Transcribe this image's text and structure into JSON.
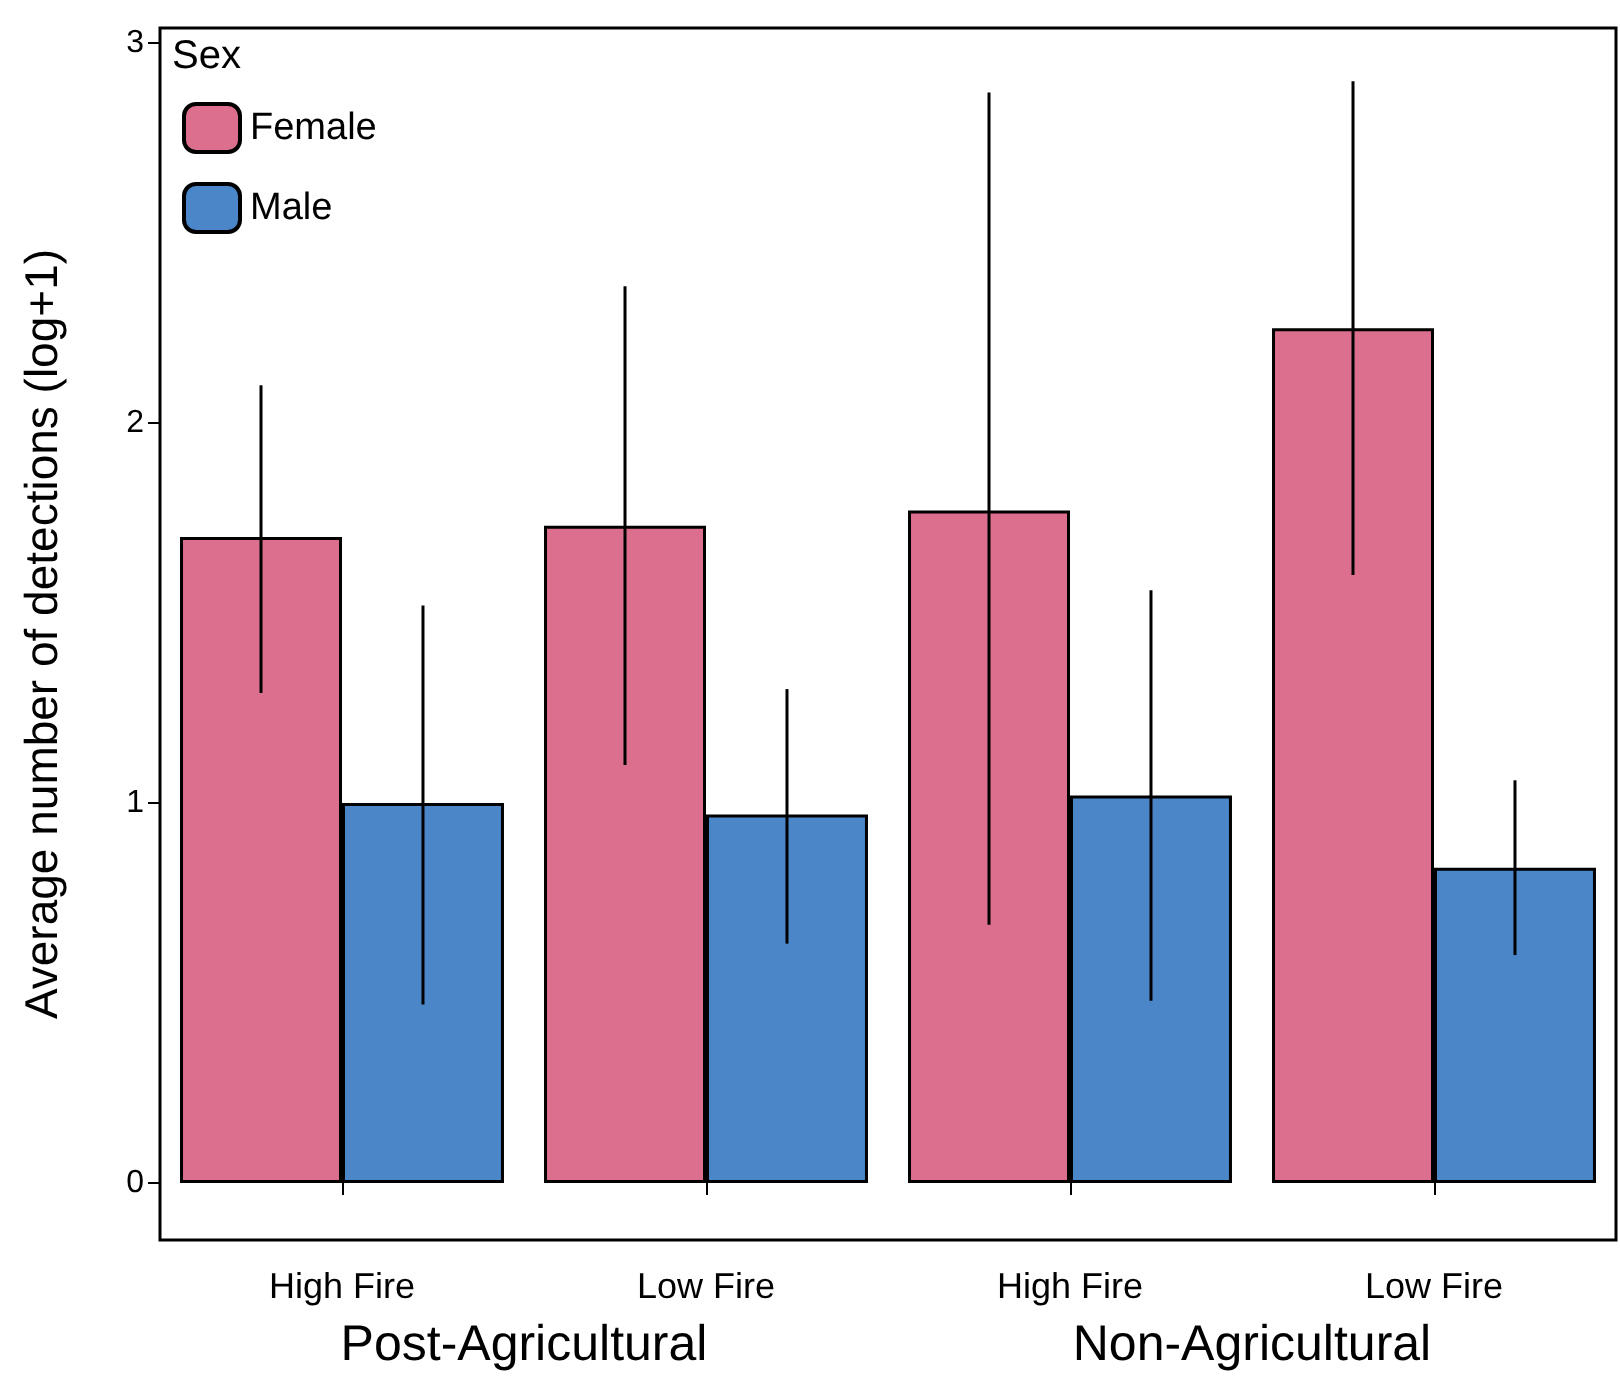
{
  "chart_data": {
    "type": "bar",
    "ylabel": "Average number of detections (log+1)",
    "legend_title": "Sex",
    "categories": [
      "High Fire",
      "Low Fire",
      "High Fire",
      "Low Fire"
    ],
    "series": [
      {
        "name": "Female",
        "color": "#dc6f8e",
        "values": [
          1.7,
          1.73,
          1.77,
          2.25
        ],
        "errors": [
          [
            1.29,
            2.1
          ],
          [
            1.1,
            2.36
          ],
          [
            0.68,
            2.87
          ],
          [
            1.6,
            2.9
          ]
        ]
      },
      {
        "name": "Male",
        "color": "#4a86c8",
        "values": [
          1.0,
          0.97,
          1.02,
          0.83
        ],
        "errors": [
          [
            0.47,
            1.52
          ],
          [
            0.63,
            1.3
          ],
          [
            0.48,
            1.56
          ],
          [
            0.6,
            1.06
          ]
        ]
      }
    ],
    "annotations": [
      "Post-Agricultural",
      "Non-Agricultural"
    ],
    "ylim": [
      -0.15,
      3.04
    ],
    "yticks": [
      0,
      1,
      2,
      3
    ],
    "grid": false,
    "legend": "top left"
  }
}
